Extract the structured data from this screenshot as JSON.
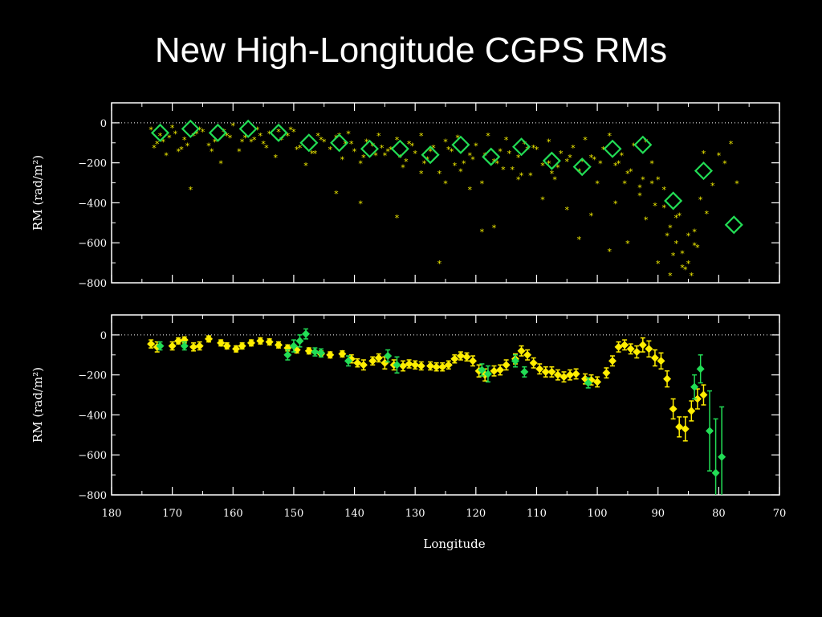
{
  "slide": {
    "title": "New High-Longitude CGPS RMs"
  },
  "colors": {
    "background": "#000000",
    "axes": "#ffffff",
    "stars": "#f5f000",
    "green": "#22dd55",
    "yellow": "#ffee00"
  },
  "chart_data": [
    {
      "type": "scatter",
      "ylabel": "RM (rad/m²)",
      "xlim": [
        180,
        70
      ],
      "ylim": [
        -800,
        100
      ],
      "x_ticks": [
        180,
        170,
        160,
        150,
        140,
        130,
        120,
        110,
        100,
        90,
        80,
        70
      ],
      "y_ticks": [
        0,
        -200,
        -400,
        -600,
        -800
      ],
      "y_tick_labels": [
        "0",
        "−200",
        "−400",
        "−600",
        "−800"
      ],
      "zero_line": true,
      "series": [
        {
          "marker": "star",
          "color": "#f5f000",
          "x": [
            173.5,
            172,
            170,
            168,
            166,
            165,
            163,
            161,
            160,
            158,
            156,
            155,
            154,
            152,
            150,
            149,
            147,
            146,
            145,
            144,
            143,
            142,
            141,
            140,
            139,
            138,
            137,
            136,
            135,
            134,
            133,
            132,
            131,
            130,
            129,
            128,
            127,
            126,
            125,
            124,
            123,
            122,
            121,
            120,
            119,
            118,
            117,
            116,
            115,
            114,
            113,
            112,
            111,
            110,
            109,
            108,
            107,
            106,
            105,
            104,
            103,
            102,
            101,
            100,
            99,
            98,
            97,
            96,
            95,
            94,
            93,
            92,
            91,
            90,
            89,
            88,
            87,
            86,
            85,
            84,
            83,
            82,
            81,
            80,
            79,
            78,
            77,
            173,
            171,
            169,
            167,
            164,
            162,
            159,
            157,
            153,
            151,
            148,
            143,
            139,
            133,
            129,
            125,
            121,
            117,
            113,
            109,
            105,
            101,
            97,
            95,
            93,
            89,
            87,
            85,
            84,
            86,
            88,
            90,
            92,
            119,
            137,
            126,
            108,
            103,
            98,
            91,
            172.5,
            170.5,
            168.5,
            166.5,
            163.5,
            161.5,
            158.5,
            156.5,
            154.5,
            150.5,
            146.5,
            141.5,
            138.5,
            135.5,
            131.5,
            127.5,
            123.5,
            118.5,
            115.5,
            111.5,
            107.5,
            104.5,
            100.5,
            96.5,
            94.5,
            90.5,
            87.5,
            85.5,
            83.5,
            82.5,
            171.5,
            169.5,
            167.5,
            165.5,
            160.5,
            155.5,
            152.5,
            149.5,
            145.5,
            142.5,
            140.5,
            136.5,
            134.5,
            132.5,
            130.5,
            128.5,
            124.5,
            122.5,
            120.5,
            116.5,
            114.5,
            112.5,
            110.5,
            106.5,
            102.5,
            99.5,
            95.5,
            92.5,
            88.5,
            86.5,
            84.5
          ],
          "values": [
            -30,
            -60,
            -20,
            -80,
            -50,
            -40,
            -90,
            -60,
            -10,
            -70,
            -30,
            -100,
            -50,
            -80,
            -40,
            -120,
            -150,
            -60,
            -90,
            -130,
            -70,
            -180,
            -50,
            -140,
            -200,
            -90,
            -110,
            -60,
            -160,
            -130,
            -80,
            -220,
            -100,
            -150,
            -60,
            -180,
            -120,
            -250,
            -90,
            -140,
            -70,
            -200,
            -160,
            -110,
            -300,
            -60,
            -190,
            -140,
            -80,
            -230,
            -170,
            -100,
            -260,
            -130,
            -210,
            -90,
            -280,
            -150,
            -190,
            -120,
            -240,
            -80,
            -170,
            -300,
            -130,
            -60,
            -210,
            -160,
            -250,
            -110,
            -320,
            -90,
            -200,
            -280,
            -420,
            -520,
            -600,
            -650,
            -700,
            -540,
            -380,
            -450,
            -310,
            -160,
            -200,
            -100,
            -300,
            -120,
            -160,
            -140,
            -330,
            -110,
            -200,
            -140,
            -90,
            -170,
            -60,
            -210,
            -350,
            -400,
            -470,
            -250,
            -300,
            -330,
            -520,
            -280,
            -380,
            -430,
            -460,
            -400,
            -600,
            -360,
            -330,
            -470,
            -560,
            -610,
            -720,
            -760,
            -700,
            -480,
            -540,
            -110,
            -700,
            -200,
            -580,
            -640,
            -300,
            -100,
            -70,
            -130,
            -60,
            -140,
            -40,
            -90,
            -80,
            -120,
            -30,
            -150,
            -100,
            -170,
            -120,
            -190,
            -140,
            -210,
            -160,
            -230,
            -130,
            -250,
            -170,
            -180,
            -200,
            -240,
            -410,
            -660,
            -730,
            -620,
            -150,
            -90,
            -50,
            -110,
            -30,
            -70,
            -60,
            -40,
            -130,
            -80,
            -60,
            -100,
            -160,
            -140,
            -170,
            -110,
            -200,
            -130,
            -240,
            -180,
            -200,
            -150,
            -260,
            -120,
            -220,
            -190,
            -200,
            -300,
            -280,
            -560,
            -460,
            -760
          ]
        },
        {
          "marker": "diamond-open",
          "color": "#22dd55",
          "x": [
            172,
            167,
            162.5,
            157.5,
            152.5,
            147.5,
            142.5,
            137.5,
            132.5,
            127.5,
            122.5,
            117.5,
            112.5,
            107.5,
            102.5,
            97.5,
            92.5,
            87.5,
            82.5,
            77.5
          ],
          "values": [
            -50,
            -30,
            -50,
            -30,
            -50,
            -100,
            -100,
            -130,
            -130,
            -160,
            -110,
            -170,
            -120,
            -190,
            -220,
            -130,
            -110,
            -390,
            -240,
            -510
          ]
        }
      ]
    },
    {
      "type": "scatter",
      "xlabel": "Longitude",
      "ylabel": "RM (rad/m²)",
      "xlim": [
        180,
        70
      ],
      "ylim": [
        -800,
        100
      ],
      "x_ticks": [
        180,
        170,
        160,
        150,
        140,
        130,
        120,
        110,
        100,
        90,
        80,
        70
      ],
      "x_tick_labels": [
        "180",
        "170",
        "160",
        "150",
        "140",
        "130",
        "120",
        "110",
        "100",
        "90",
        "80",
        "70"
      ],
      "y_ticks": [
        0,
        -200,
        -400,
        -600,
        -800
      ],
      "y_tick_labels": [
        "0",
        "−200",
        "−400",
        "−600",
        "−800"
      ],
      "zero_line": true,
      "series": [
        {
          "marker": "diamond-filled",
          "color": "#ffee00",
          "points": [
            [
              173.5,
              -45,
              20
            ],
            [
              172.5,
              -60,
              25
            ],
            [
              170,
              -55,
              20
            ],
            [
              169,
              -30,
              15
            ],
            [
              168,
              -25,
              15
            ],
            [
              166.5,
              -60,
              20
            ],
            [
              165.5,
              -55,
              20
            ],
            [
              164,
              -20,
              15
            ],
            [
              162,
              -40,
              15
            ],
            [
              161,
              -55,
              15
            ],
            [
              159.5,
              -70,
              15
            ],
            [
              158.5,
              -55,
              15
            ],
            [
              157,
              -40,
              15
            ],
            [
              155.5,
              -30,
              15
            ],
            [
              154,
              -35,
              15
            ],
            [
              152.5,
              -50,
              15
            ],
            [
              151,
              -65,
              15
            ],
            [
              149.5,
              -75,
              15
            ],
            [
              147.5,
              -80,
              15
            ],
            [
              145.5,
              -95,
              15
            ],
            [
              144,
              -100,
              15
            ],
            [
              142,
              -95,
              15
            ],
            [
              140.5,
              -120,
              20
            ],
            [
              139.5,
              -140,
              20
            ],
            [
              138.5,
              -150,
              25
            ],
            [
              137,
              -130,
              20
            ],
            [
              136,
              -115,
              20
            ],
            [
              135,
              -140,
              30
            ],
            [
              133.5,
              -150,
              25
            ],
            [
              132,
              -155,
              25
            ],
            [
              131,
              -145,
              20
            ],
            [
              130,
              -150,
              20
            ],
            [
              129,
              -155,
              20
            ],
            [
              127.5,
              -155,
              20
            ],
            [
              126.5,
              -160,
              20
            ],
            [
              125.5,
              -160,
              20
            ],
            [
              124.5,
              -150,
              20
            ],
            [
              123.5,
              -120,
              20
            ],
            [
              122.5,
              -105,
              20
            ],
            [
              121.5,
              -110,
              20
            ],
            [
              120.5,
              -130,
              25
            ],
            [
              119.5,
              -180,
              30
            ],
            [
              118.5,
              -200,
              30
            ],
            [
              117,
              -180,
              25
            ],
            [
              116,
              -175,
              25
            ],
            [
              115,
              -150,
              25
            ],
            [
              113.5,
              -120,
              25
            ],
            [
              112.5,
              -80,
              25
            ],
            [
              111.5,
              -100,
              25
            ],
            [
              110.5,
              -140,
              25
            ],
            [
              109.5,
              -170,
              25
            ],
            [
              108.5,
              -185,
              25
            ],
            [
              107.5,
              -185,
              25
            ],
            [
              106.5,
              -200,
              25
            ],
            [
              105.5,
              -210,
              25
            ],
            [
              104.5,
              -200,
              25
            ],
            [
              103.5,
              -195,
              25
            ],
            [
              102,
              -220,
              25
            ],
            [
              101,
              -225,
              25
            ],
            [
              100,
              -235,
              25
            ],
            [
              98.5,
              -190,
              25
            ],
            [
              97.5,
              -130,
              25
            ],
            [
              96.5,
              -60,
              25
            ],
            [
              95.5,
              -50,
              25
            ],
            [
              94.5,
              -70,
              25
            ],
            [
              93.5,
              -85,
              30
            ],
            [
              92.5,
              -50,
              35
            ],
            [
              91.5,
              -70,
              40
            ],
            [
              90.5,
              -115,
              40
            ],
            [
              89.5,
              -130,
              40
            ],
            [
              88.5,
              -220,
              40
            ],
            [
              87.5,
              -370,
              50
            ],
            [
              86.5,
              -460,
              50
            ],
            [
              85.5,
              -470,
              60
            ],
            [
              84.5,
              -380,
              50
            ],
            [
              83.5,
              -320,
              50
            ],
            [
              82.5,
              -300,
              50
            ]
          ]
        },
        {
          "marker": "diamond-filled",
          "color": "#22dd55",
          "points": [
            [
              172,
              -55,
              20
            ],
            [
              168,
              -55,
              20
            ],
            [
              151,
              -100,
              25
            ],
            [
              150,
              -55,
              30
            ],
            [
              149,
              -30,
              30
            ],
            [
              148,
              5,
              25
            ],
            [
              146.5,
              -85,
              20
            ],
            [
              145.5,
              -90,
              20
            ],
            [
              141,
              -130,
              25
            ],
            [
              134.5,
              -105,
              30
            ],
            [
              133,
              -150,
              40
            ],
            [
              119,
              -175,
              30
            ],
            [
              118,
              -195,
              40
            ],
            [
              113.5,
              -130,
              30
            ],
            [
              112,
              -185,
              25
            ],
            [
              101.5,
              -240,
              25
            ],
            [
              84,
              -260,
              60
            ],
            [
              83,
              -170,
              70
            ],
            [
              81.5,
              -480,
              200
            ],
            [
              80.5,
              -690,
              270
            ],
            [
              79.5,
              -610,
              250
            ]
          ]
        }
      ]
    }
  ]
}
